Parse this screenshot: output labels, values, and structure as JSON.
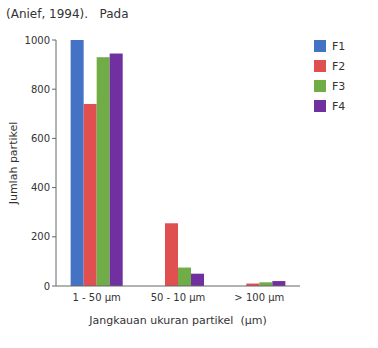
{
  "chart_data": {
    "type": "bar",
    "title": "(Anief, 1994).   Pada",
    "categories": [
      "1 - 50 μm",
      "50 - 10 μm",
      "> 100 μm"
    ],
    "series": [
      {
        "name": "F1",
        "color": "#4472C4",
        "values": [
          1000,
          0,
          0
        ]
      },
      {
        "name": "F2",
        "color": "#E05050",
        "values": [
          740,
          255,
          10
        ]
      },
      {
        "name": "F3",
        "color": "#70AD47",
        "values": [
          930,
          75,
          15
        ]
      },
      {
        "name": "F4",
        "color": "#7030A0",
        "values": [
          945,
          50,
          20
        ]
      }
    ],
    "y_label": "Jumlah partikel",
    "x_label": "Jangkauan ukuran partikel  (μm)",
    "ylim": [
      0,
      1000
    ],
    "yticks": [
      0,
      200,
      400,
      600,
      800,
      1000
    ],
    "grid": false,
    "legend": "right"
  }
}
